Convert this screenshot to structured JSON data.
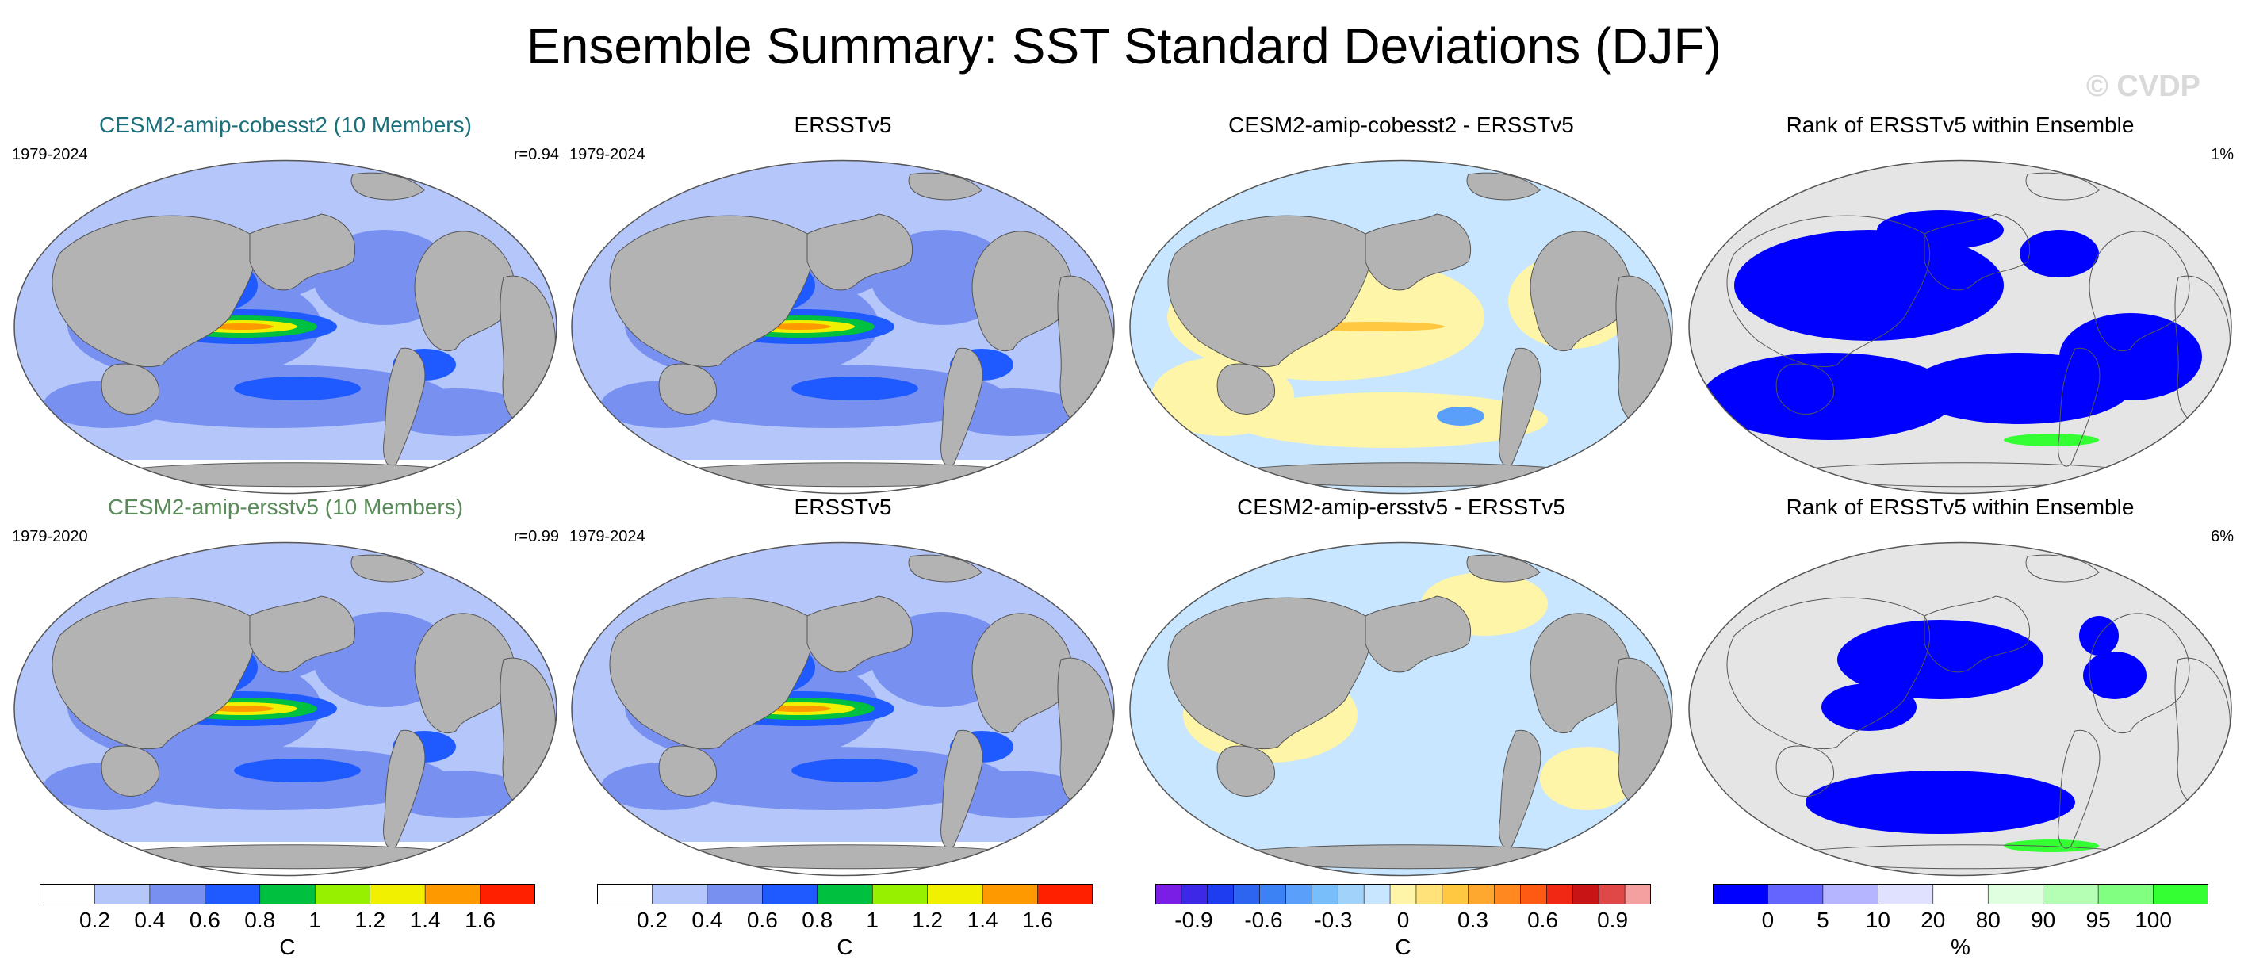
{
  "title": "Ensemble Summary: SST Standard Deviations (DJF)",
  "watermark": "© CVDP",
  "colors": {
    "ocean_low": "#b4c6fa",
    "ocean_mid": "#7891f0",
    "ocean_high": "#1e5aff",
    "green": "#00c040",
    "yellow": "#f0f000",
    "orange": "#ff9900",
    "red": "#ff2000",
    "land": "#b3b3b3",
    "land_light": "#e5e5e5",
    "rank_blue": "#0000ff",
    "rank_green": "#33ff33",
    "diff_pos": "#fff5a8",
    "diff_neg": "#c8e6ff"
  },
  "panels": [
    {
      "id": "p1",
      "title": "CESM2-amip-cobesst2 (10 Members)",
      "title_color": "#1a6f7a",
      "left": "1979-2024",
      "right": "r=0.94",
      "kind": "std"
    },
    {
      "id": "p2",
      "title": "ERSSTv5",
      "title_color": "#000000",
      "left": "1979-2024",
      "right": "",
      "kind": "std"
    },
    {
      "id": "p3",
      "title": "CESM2-amip-cobesst2 - ERSSTv5",
      "title_color": "#000000",
      "left": "",
      "right": "",
      "kind": "diff1"
    },
    {
      "id": "p4",
      "title": "Rank of ERSSTv5 within Ensemble",
      "title_color": "#000000",
      "left": "",
      "right": "1%",
      "kind": "rank1"
    },
    {
      "id": "p5",
      "title": "CESM2-amip-ersstv5 (10 Members)",
      "title_color": "#5a8a5a",
      "left": "1979-2020",
      "right": "r=0.99",
      "kind": "std"
    },
    {
      "id": "p6",
      "title": "ERSSTv5",
      "title_color": "#000000",
      "left": "1979-2024",
      "right": "",
      "kind": "std"
    },
    {
      "id": "p7",
      "title": "CESM2-amip-ersstv5 - ERSSTv5",
      "title_color": "#000000",
      "left": "",
      "right": "",
      "kind": "diff2"
    },
    {
      "id": "p8",
      "title": "Rank of ERSSTv5 within Ensemble",
      "title_color": "#000000",
      "left": "",
      "right": "6%",
      "kind": "rank2"
    }
  ],
  "colorbars": [
    {
      "id": "cb1",
      "unit": "C",
      "ticks": [
        "0.2",
        "0.4",
        "0.6",
        "0.8",
        "1",
        "1.2",
        "1.4",
        "1.6"
      ],
      "colors": [
        "#ffffff",
        "#b4c6fa",
        "#7891f0",
        "#1e5aff",
        "#00c040",
        "#96f000",
        "#f0f000",
        "#ff9900",
        "#ff2000"
      ]
    },
    {
      "id": "cb2",
      "unit": "C",
      "ticks": [
        "0.2",
        "0.4",
        "0.6",
        "0.8",
        "1",
        "1.2",
        "1.4",
        "1.6"
      ],
      "colors": [
        "#ffffff",
        "#b4c6fa",
        "#7891f0",
        "#1e5aff",
        "#00c040",
        "#96f000",
        "#f0f000",
        "#ff9900",
        "#ff2000"
      ]
    },
    {
      "id": "cb3",
      "unit": "C",
      "ticks": [
        "-0.9",
        "-0.6",
        "-0.3",
        "0",
        "0.3",
        "0.6",
        "0.9"
      ],
      "colors": [
        "#7a1ee6",
        "#3c28e6",
        "#1e3cf0",
        "#2d64f0",
        "#3c82f5",
        "#5aa0fa",
        "#78befa",
        "#a0d2fa",
        "#c8e6ff",
        "#fff5a8",
        "#ffe27a",
        "#ffc840",
        "#ffa830",
        "#ff8820",
        "#ff5a14",
        "#f02814",
        "#c81414",
        "#e04848",
        "#f5a0a0"
      ]
    },
    {
      "id": "cb4",
      "unit": "%",
      "ticks": [
        "0",
        "5",
        "10",
        "20",
        "80",
        "90",
        "95",
        "100"
      ],
      "colors": [
        "#0000ff",
        "#6464ff",
        "#b4b4ff",
        "#e0e0ff",
        "#ffffff",
        "#e0ffe0",
        "#b4ffb4",
        "#80ff80",
        "#33ff33"
      ]
    }
  ]
}
